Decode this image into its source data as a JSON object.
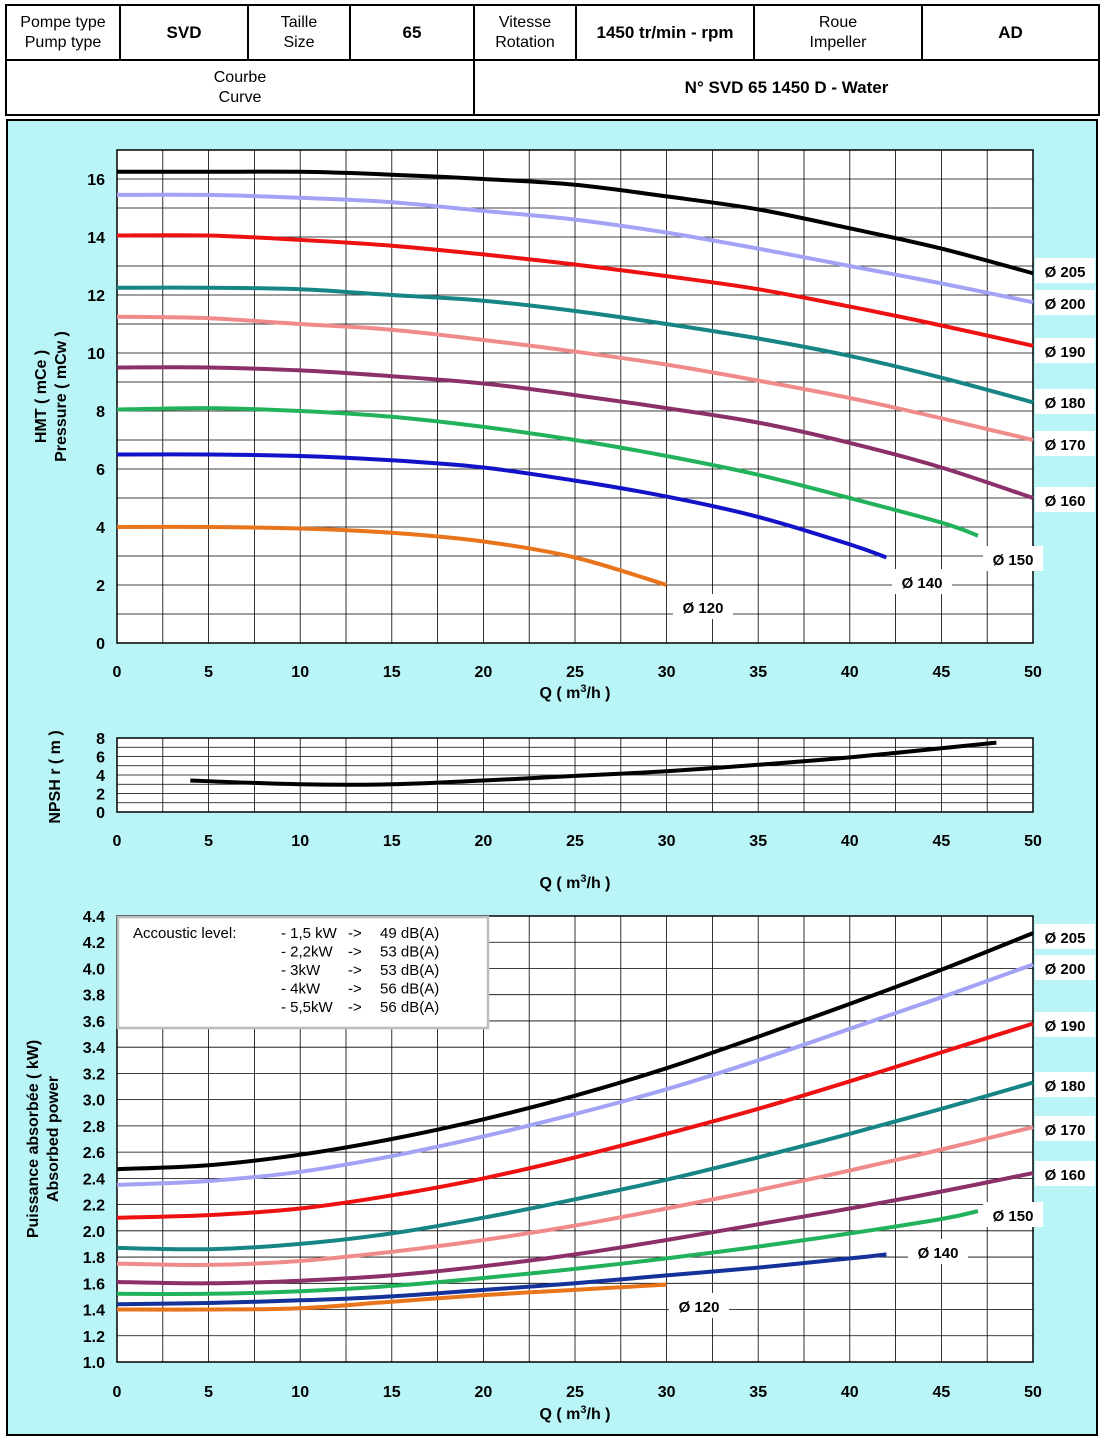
{
  "header": {
    "pump_type_label": [
      "Pompe type",
      "Pump type"
    ],
    "pump_type_value": "SVD",
    "size_label": [
      "Taille",
      "Size"
    ],
    "size_value": "65",
    "speed_label": [
      "Vitesse",
      "Rotation"
    ],
    "speed_value": "1450 tr/min - rpm",
    "impeller_label": [
      "Roue",
      "Impeller"
    ],
    "impeller_value": "AD",
    "curve_label": [
      "Courbe",
      "Curve"
    ],
    "curve_value": "N° SVD 65 1450 D - Water"
  },
  "colors": {
    "background": "#b9f4f7",
    "d205": "#000000",
    "d200": "#a3a3f5",
    "d190": "#ee1111",
    "d180": "#178585",
    "d170": "#f08b8b",
    "d160": "#8b3068",
    "d150": "#22b35a",
    "d140": "#1212c8",
    "d120": "#e8741c",
    "d140_power": "#14329a"
  },
  "chart_data": [
    {
      "type": "line",
      "ylabel": [
        "HMT ( mCe )",
        "Pressure ( mCw )"
      ],
      "xlabel": "Q ( m³/h )",
      "xlim": [
        0,
        50
      ],
      "ylim": [
        0,
        17
      ],
      "xticks": [
        0,
        5,
        10,
        15,
        20,
        25,
        30,
        35,
        40,
        45,
        50
      ],
      "yticks": [
        0,
        2,
        4,
        6,
        8,
        10,
        12,
        14,
        16
      ],
      "grid": true,
      "series": [
        {
          "name": "Ø 205",
          "x": [
            0,
            5,
            10,
            15,
            20,
            25,
            30,
            35,
            40,
            45,
            50
          ],
          "y": [
            16.25,
            16.25,
            16.25,
            16.15,
            16.0,
            15.8,
            15.4,
            14.95,
            14.3,
            13.6,
            12.75
          ]
        },
        {
          "name": "Ø 200",
          "x": [
            0,
            5,
            10,
            15,
            20,
            25,
            30,
            35,
            40,
            45,
            50
          ],
          "y": [
            15.45,
            15.45,
            15.35,
            15.2,
            14.9,
            14.6,
            14.15,
            13.6,
            13.0,
            12.4,
            11.75
          ]
        },
        {
          "name": "Ø 190",
          "x": [
            0,
            5,
            10,
            15,
            20,
            25,
            30,
            35,
            40,
            45,
            50
          ],
          "y": [
            14.05,
            14.05,
            13.9,
            13.7,
            13.4,
            13.05,
            12.65,
            12.2,
            11.6,
            10.95,
            10.25
          ]
        },
        {
          "name": "Ø 180",
          "x": [
            0,
            5,
            10,
            15,
            20,
            25,
            30,
            35,
            40,
            45,
            50
          ],
          "y": [
            12.25,
            12.25,
            12.2,
            12.0,
            11.8,
            11.45,
            11.0,
            10.5,
            9.9,
            9.15,
            8.3
          ]
        },
        {
          "name": "Ø 170",
          "x": [
            0,
            5,
            10,
            15,
            20,
            25,
            30,
            35,
            40,
            45,
            50
          ],
          "y": [
            11.25,
            11.2,
            11.0,
            10.8,
            10.45,
            10.05,
            9.6,
            9.05,
            8.45,
            7.75,
            7.0
          ]
        },
        {
          "name": "Ø 160",
          "x": [
            0,
            5,
            10,
            15,
            20,
            25,
            30,
            35,
            40,
            45,
            50
          ],
          "y": [
            9.5,
            9.5,
            9.4,
            9.2,
            8.95,
            8.55,
            8.1,
            7.6,
            6.9,
            6.05,
            5.0
          ]
        },
        {
          "name": "Ø 150",
          "x": [
            0,
            5,
            10,
            15,
            20,
            25,
            30,
            35,
            40,
            45,
            47
          ],
          "y": [
            8.05,
            8.1,
            8.0,
            7.8,
            7.45,
            7.0,
            6.45,
            5.8,
            5.0,
            4.15,
            3.7
          ]
        },
        {
          "name": "Ø 140",
          "x": [
            0,
            5,
            10,
            15,
            20,
            25,
            30,
            35,
            40,
            42
          ],
          "y": [
            6.5,
            6.5,
            6.45,
            6.3,
            6.05,
            5.6,
            5.05,
            4.35,
            3.4,
            2.95
          ]
        },
        {
          "name": "Ø 120",
          "x": [
            0,
            5,
            10,
            15,
            20,
            25,
            30
          ],
          "y": [
            4.0,
            4.0,
            3.95,
            3.8,
            3.5,
            2.95,
            2.0
          ]
        }
      ]
    },
    {
      "type": "line",
      "ylabel": "NPSH r ( m )",
      "xlabel": "Q ( m³/h )",
      "xlim": [
        0,
        50
      ],
      "ylim": [
        0,
        8
      ],
      "xticks": [
        0,
        5,
        10,
        15,
        20,
        25,
        30,
        35,
        40,
        45,
        50
      ],
      "yticks": [
        0,
        2,
        4,
        6,
        8
      ],
      "grid": true,
      "series": [
        {
          "x": [
            4,
            10,
            15,
            20,
            25,
            30,
            35,
            40,
            45,
            48
          ],
          "y": [
            3.4,
            3.0,
            3.0,
            3.4,
            3.9,
            4.4,
            5.1,
            5.9,
            6.9,
            7.5
          ]
        }
      ]
    },
    {
      "type": "line",
      "ylabel": [
        "Puissance absorbée ( kW)",
        "Absorbed power"
      ],
      "xlabel": "Q ( m³/h )",
      "xlim": [
        0,
        50
      ],
      "ylim": [
        1.0,
        4.4
      ],
      "xticks": [
        0,
        5,
        10,
        15,
        20,
        25,
        30,
        35,
        40,
        45,
        50
      ],
      "yticks": [
        "1.0",
        "1.2",
        "1.4",
        "1.6",
        "1.8",
        "2.0",
        "2.2",
        "2.4",
        "2.6",
        "2.8",
        "3.0",
        "3.2",
        "3.4",
        "3.6",
        "3.8",
        "4.0",
        "4.2",
        "4.4"
      ],
      "grid": true,
      "series": [
        {
          "name": "Ø 205",
          "x": [
            0,
            5,
            10,
            15,
            20,
            25,
            30,
            35,
            40,
            45,
            50
          ],
          "y": [
            2.47,
            2.5,
            2.58,
            2.7,
            2.85,
            3.03,
            3.24,
            3.48,
            3.73,
            3.99,
            4.27
          ]
        },
        {
          "name": "Ø 200",
          "x": [
            0,
            5,
            10,
            15,
            20,
            25,
            30,
            35,
            40,
            45,
            50
          ],
          "y": [
            2.35,
            2.38,
            2.45,
            2.57,
            2.72,
            2.89,
            3.08,
            3.3,
            3.54,
            3.78,
            4.03
          ]
        },
        {
          "name": "Ø 190",
          "x": [
            0,
            5,
            10,
            15,
            20,
            25,
            30,
            35,
            40,
            45,
            50
          ],
          "y": [
            2.1,
            2.12,
            2.17,
            2.27,
            2.4,
            2.56,
            2.74,
            2.93,
            3.14,
            3.36,
            3.58
          ]
        },
        {
          "name": "Ø 180",
          "x": [
            0,
            5,
            10,
            15,
            20,
            25,
            30,
            35,
            40,
            45,
            50
          ],
          "y": [
            1.87,
            1.86,
            1.9,
            1.98,
            2.1,
            2.24,
            2.39,
            2.56,
            2.74,
            2.93,
            3.13
          ]
        },
        {
          "name": "Ø 170",
          "x": [
            0,
            5,
            10,
            15,
            20,
            25,
            30,
            35,
            40,
            45,
            50
          ],
          "y": [
            1.75,
            1.74,
            1.77,
            1.84,
            1.93,
            2.04,
            2.17,
            2.31,
            2.46,
            2.62,
            2.79
          ]
        },
        {
          "name": "Ø 160",
          "x": [
            0,
            5,
            10,
            15,
            20,
            25,
            30,
            35,
            40,
            45,
            50
          ],
          "y": [
            1.61,
            1.6,
            1.62,
            1.66,
            1.73,
            1.82,
            1.93,
            2.05,
            2.17,
            2.3,
            2.44
          ]
        },
        {
          "name": "Ø 150",
          "x": [
            0,
            5,
            10,
            15,
            20,
            25,
            30,
            35,
            40,
            45,
            47
          ],
          "y": [
            1.52,
            1.52,
            1.54,
            1.58,
            1.64,
            1.71,
            1.79,
            1.88,
            1.98,
            2.09,
            2.15
          ]
        },
        {
          "name": "Ø 140",
          "x": [
            0,
            5,
            10,
            15,
            20,
            25,
            30,
            35,
            40,
            42
          ],
          "y": [
            1.44,
            1.45,
            1.47,
            1.5,
            1.55,
            1.6,
            1.66,
            1.72,
            1.79,
            1.82
          ]
        },
        {
          "name": "Ø 120",
          "x": [
            0,
            5,
            10,
            15,
            20,
            25,
            30
          ],
          "y": [
            1.4,
            1.4,
            1.41,
            1.46,
            1.51,
            1.55,
            1.59
          ]
        }
      ],
      "annotation": {
        "title": "Accoustic level:",
        "rows": [
          [
            "- 1,5 kW",
            "->",
            "49 dB(A)"
          ],
          [
            "- 2,2kW",
            "->",
            "53 dB(A)"
          ],
          [
            "- 3kW",
            "->",
            "53 dB(A)"
          ],
          [
            "- 4kW",
            "->",
            "56 dB(A)"
          ],
          [
            "- 5,5kW",
            "->",
            "56 dB(A)"
          ]
        ]
      }
    }
  ]
}
